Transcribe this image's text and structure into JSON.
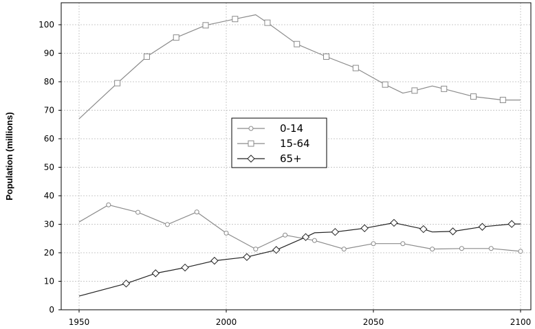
{
  "chart_data": {
    "type": "line",
    "title": "",
    "xlabel": "",
    "ylabel": "Population (millions)",
    "xlim": [
      1950,
      2100
    ],
    "ylim": [
      0,
      105
    ],
    "x_ticks": [
      "1950",
      "2000",
      "2050",
      "2100"
    ],
    "y_ticks": [
      "0",
      "10",
      "20",
      "30",
      "40",
      "50",
      "60",
      "70",
      "80",
      "90",
      "100"
    ],
    "grid": true,
    "legend_position": "center",
    "series": [
      {
        "name": "0-14",
        "marker": "circle",
        "color": "#8a8a8a",
        "x": [
          1950,
          1960,
          1970,
          1980,
          1990,
          2000,
          2010,
          2020,
          2030,
          2040,
          2050,
          2060,
          2070,
          2080,
          2090,
          2100
        ],
        "y": [
          30.8,
          36.8,
          34.2,
          29.9,
          34.3,
          26.9,
          21.3,
          26.2,
          24.3,
          21.3,
          23.2,
          23.2,
          21.3,
          21.5,
          21.5,
          20.5
        ]
      },
      {
        "name": "15-64",
        "marker": "square",
        "color": "#8a8a8a",
        "x": [
          1950,
          1963,
          1973,
          1983,
          1993,
          2003,
          2010,
          2014,
          2024,
          2034,
          2044,
          2054,
          2060,
          2064,
          2070,
          2074,
          2084,
          2094,
          2100
        ],
        "y": [
          67,
          79.5,
          88.8,
          95.5,
          99.8,
          102,
          103.5,
          100.7,
          93.2,
          88.8,
          84.8,
          79,
          76,
          76.9,
          78.5,
          77.5,
          74.8,
          73.6,
          73.6
        ]
      },
      {
        "name": "65+",
        "marker": "diamond",
        "color": "#222222",
        "x": [
          1950,
          1966,
          1976,
          1986,
          1996,
          2007,
          2017,
          2027,
          2030,
          2037,
          2047,
          2057,
          2067,
          2070,
          2077,
          2087,
          2097,
          2100
        ],
        "y": [
          4.8,
          9.2,
          12.8,
          14.8,
          17.2,
          18.5,
          21,
          25.5,
          27,
          27.3,
          28.6,
          30.5,
          28.3,
          27.3,
          27.5,
          29.1,
          30.1,
          30.1
        ]
      }
    ]
  }
}
